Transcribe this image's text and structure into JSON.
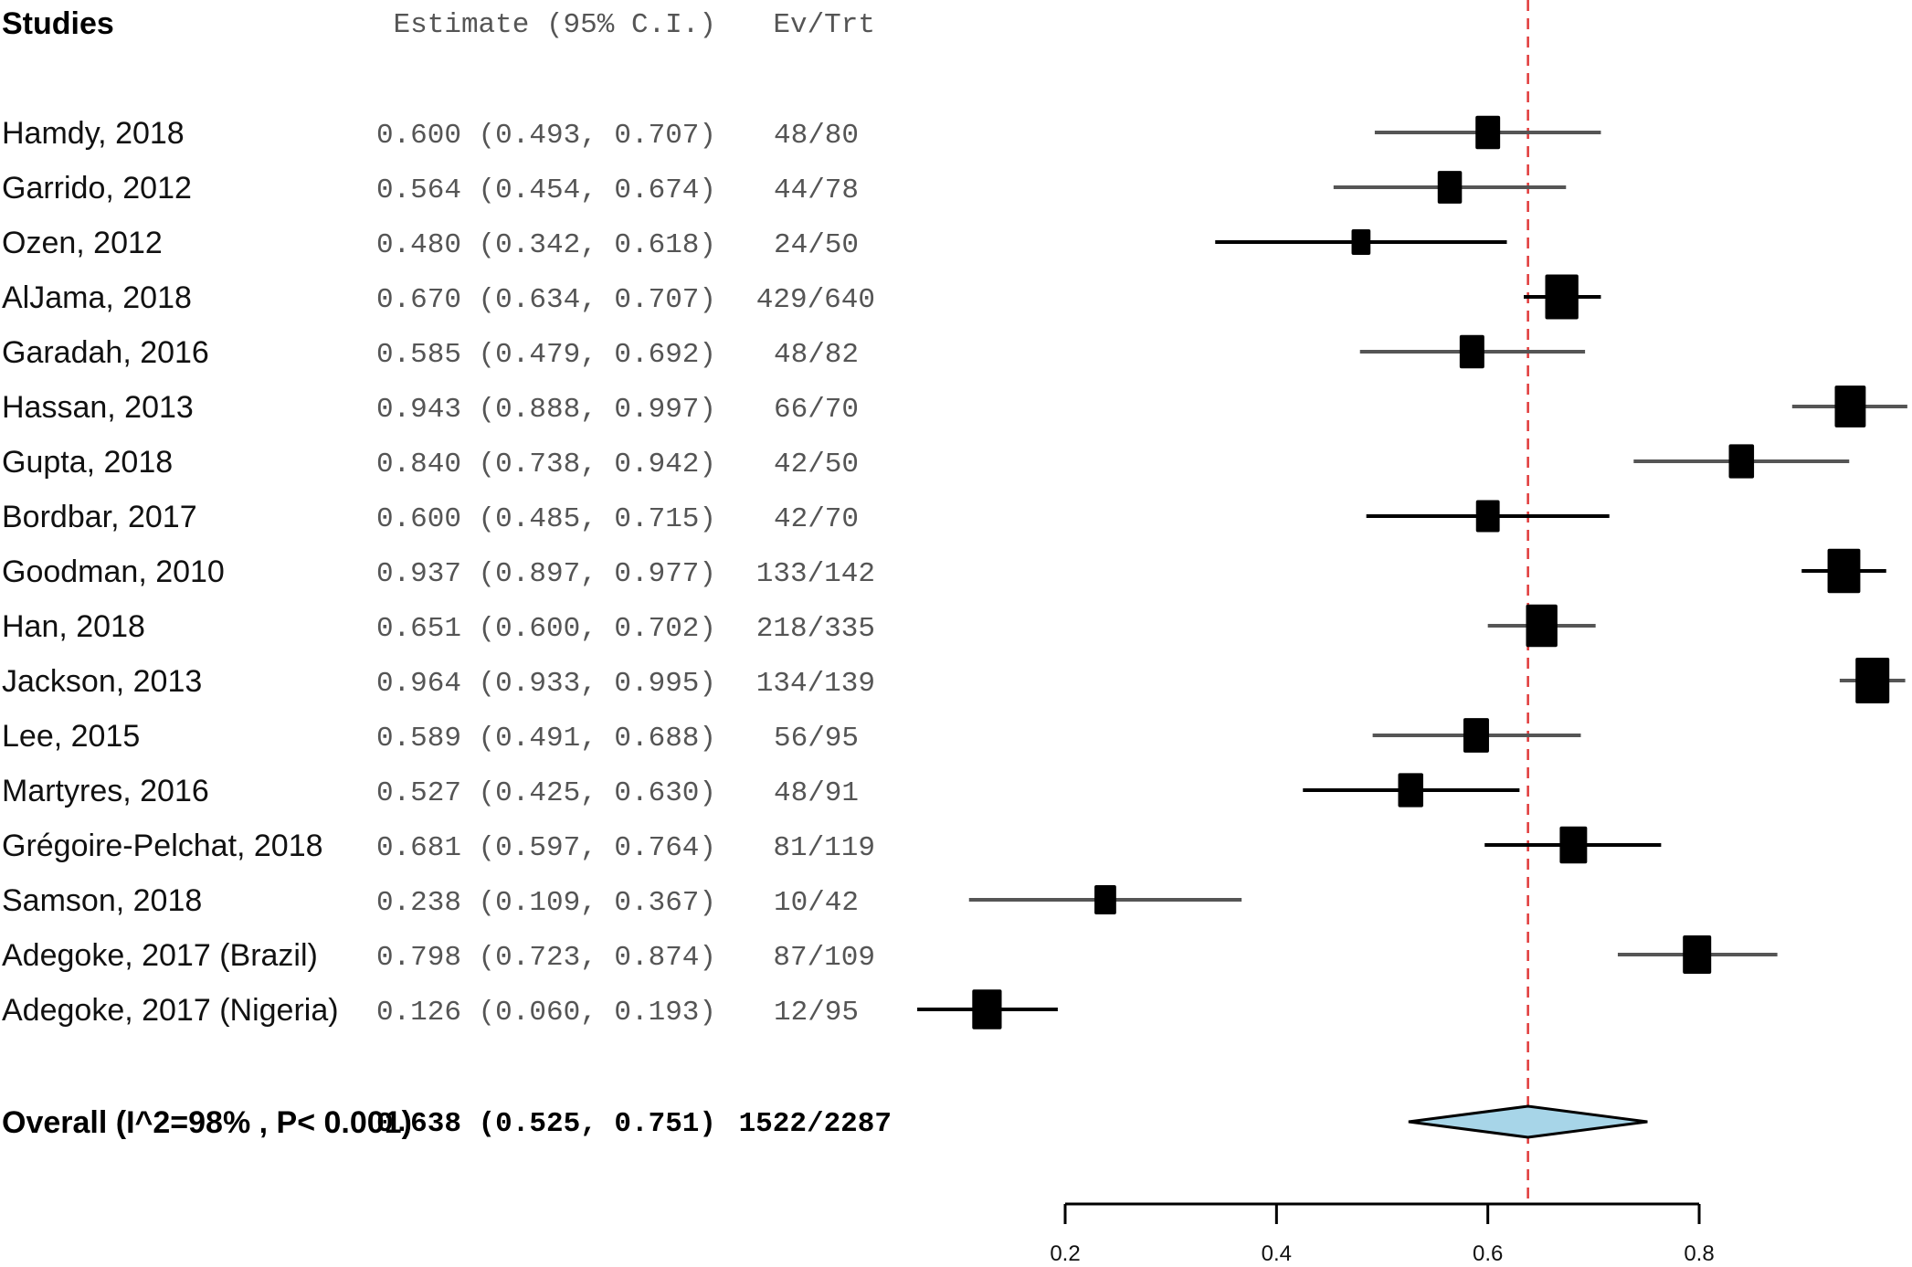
{
  "chart_data": {
    "type": "forest",
    "headers": {
      "studies": "Studies",
      "estimate": "Estimate (95% C.I.)",
      "ev_trt": "Ev/Trt"
    },
    "studies": [
      {
        "name": "Hamdy, 2018",
        "est": 0.6,
        "lo": 0.493,
        "hi": 0.707,
        "ev_trt": "48/80",
        "estimate_text": "0.600 (0.493, 0.707)",
        "line_color": "#555555"
      },
      {
        "name": "Garrido, 2012",
        "est": 0.564,
        "lo": 0.454,
        "hi": 0.674,
        "ev_trt": "44/78",
        "estimate_text": "0.564 (0.454, 0.674)",
        "line_color": "#555555"
      },
      {
        "name": "Ozen, 2012",
        "est": 0.48,
        "lo": 0.342,
        "hi": 0.618,
        "ev_trt": "24/50",
        "estimate_text": "0.480 (0.342, 0.618)",
        "line_color": "#000000"
      },
      {
        "name": "AlJama, 2018",
        "est": 0.67,
        "lo": 0.634,
        "hi": 0.707,
        "ev_trt": "429/640",
        "estimate_text": "0.670 (0.634, 0.707)",
        "line_color": "#000000"
      },
      {
        "name": "Garadah, 2016",
        "est": 0.585,
        "lo": 0.479,
        "hi": 0.692,
        "ev_trt": "48/82",
        "estimate_text": "0.585 (0.479, 0.692)",
        "line_color": "#555555"
      },
      {
        "name": "Hassan, 2013",
        "est": 0.943,
        "lo": 0.888,
        "hi": 0.997,
        "ev_trt": "66/70",
        "estimate_text": "0.943 (0.888, 0.997)",
        "line_color": "#555555"
      },
      {
        "name": "Gupta, 2018",
        "est": 0.84,
        "lo": 0.738,
        "hi": 0.942,
        "ev_trt": "42/50",
        "estimate_text": "0.840 (0.738, 0.942)",
        "line_color": "#555555"
      },
      {
        "name": "Bordbar, 2017",
        "est": 0.6,
        "lo": 0.485,
        "hi": 0.715,
        "ev_trt": "42/70",
        "estimate_text": "0.600 (0.485, 0.715)",
        "line_color": "#000000"
      },
      {
        "name": "Goodman, 2010",
        "est": 0.937,
        "lo": 0.897,
        "hi": 0.977,
        "ev_trt": "133/142",
        "estimate_text": "0.937 (0.897, 0.977)",
        "line_color": "#000000"
      },
      {
        "name": "Han, 2018",
        "est": 0.651,
        "lo": 0.6,
        "hi": 0.702,
        "ev_trt": "218/335",
        "estimate_text": "0.651 (0.600, 0.702)",
        "line_color": "#555555"
      },
      {
        "name": "Jackson, 2013",
        "est": 0.964,
        "lo": 0.933,
        "hi": 0.995,
        "ev_trt": "134/139",
        "estimate_text": "0.964 (0.933, 0.995)",
        "line_color": "#555555"
      },
      {
        "name": "Lee, 2015",
        "est": 0.589,
        "lo": 0.491,
        "hi": 0.688,
        "ev_trt": "56/95",
        "estimate_text": "0.589 (0.491, 0.688)",
        "line_color": "#555555"
      },
      {
        "name": "Martyres, 2016",
        "est": 0.527,
        "lo": 0.425,
        "hi": 0.63,
        "ev_trt": "48/91",
        "estimate_text": "0.527 (0.425, 0.630)",
        "line_color": "#000000"
      },
      {
        "name": "Grégoire-Pelchat, 2018",
        "est": 0.681,
        "lo": 0.597,
        "hi": 0.764,
        "ev_trt": "81/119",
        "estimate_text": "0.681 (0.597, 0.764)",
        "line_color": "#000000"
      },
      {
        "name": "Samson, 2018",
        "est": 0.238,
        "lo": 0.109,
        "hi": 0.367,
        "ev_trt": "10/42",
        "estimate_text": "0.238 (0.109, 0.367)",
        "line_color": "#555555"
      },
      {
        "name": "Adegoke, 2017 (Brazil)",
        "est": 0.798,
        "lo": 0.723,
        "hi": 0.874,
        "ev_trt": "87/109",
        "estimate_text": "0.798 (0.723, 0.874)",
        "line_color": "#555555"
      },
      {
        "name": "Adegoke, 2017 (Nigeria)",
        "est": 0.126,
        "lo": 0.06,
        "hi": 0.193,
        "ev_trt": "12/95",
        "estimate_text": "0.126 (0.060, 0.193)",
        "line_color": "#000000"
      }
    ],
    "overall": {
      "label": "Overall (I^2=98% , P< 0.001)",
      "est": 0.638,
      "lo": 0.525,
      "hi": 0.751,
      "estimate_text": "0.638 (0.525, 0.751)",
      "ev_trt": "1522/2287"
    },
    "x_axis": {
      "ticks": [
        0.2,
        0.4,
        0.6,
        0.8
      ],
      "tick_labels": [
        "0.2",
        "0.4",
        "0.6",
        "0.8"
      ],
      "range": [
        0.2,
        0.8
      ]
    },
    "reference_line": {
      "value": 0.638,
      "style": "dashed"
    },
    "colors": {
      "reference_line": "#e03a3a",
      "diamond_fill": "#a7d5e8",
      "box": "#000000"
    }
  }
}
